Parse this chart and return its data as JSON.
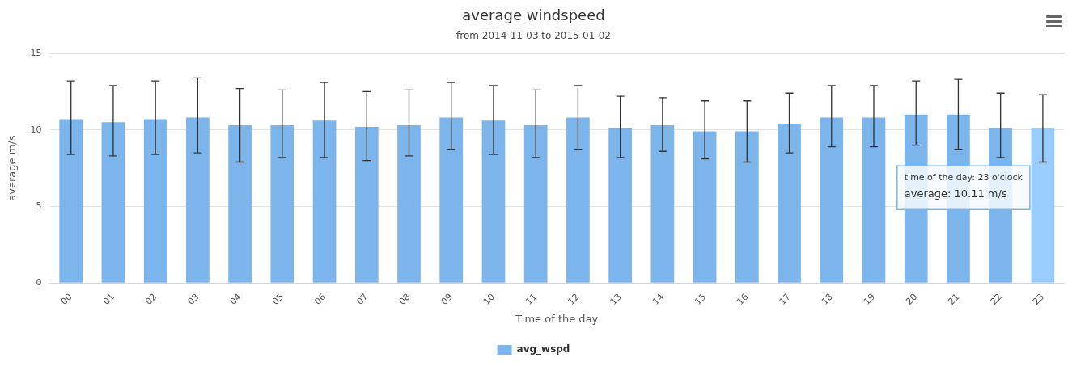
{
  "chart_data": {
    "type": "bar",
    "title": "average windspeed",
    "subtitle": "from 2014-11-03 to 2015-01-02",
    "xlabel": "Time of the day",
    "ylabel": "average m/s",
    "categories": [
      "00",
      "01",
      "02",
      "03",
      "04",
      "05",
      "06",
      "07",
      "08",
      "09",
      "10",
      "11",
      "12",
      "13",
      "14",
      "15",
      "16",
      "17",
      "18",
      "19",
      "20",
      "21",
      "22",
      "23"
    ],
    "series": [
      {
        "name": "avg_wspd",
        "color": "#7cb5ec",
        "colors": [
          "#7cb5ec",
          "#7cb5ec",
          "#7cb5ec",
          "#7cb5ec",
          "#7cb5ec",
          "#7cb5ec",
          "#7cb5ec",
          "#7cb5ec",
          "#7cb5ec",
          "#7cb5ec",
          "#7cb5ec",
          "#7cb5ec",
          "#7cb5ec",
          "#7cb5ec",
          "#7cb5ec",
          "#7cb5ec",
          "#7cb5ec",
          "#7cb5ec",
          "#7cb5ec",
          "#7cb5ec",
          "#7cb5ec",
          "#7cb5ec",
          "#7cb5ec",
          "#99ccff"
        ],
        "values": [
          10.7,
          10.5,
          10.7,
          10.8,
          10.3,
          10.3,
          10.6,
          10.2,
          10.3,
          10.8,
          10.6,
          10.3,
          10.8,
          10.1,
          10.3,
          9.9,
          9.9,
          10.4,
          10.8,
          10.8,
          11.0,
          11.0,
          10.1,
          10.11
        ],
        "errors": [
          [
            8.4,
            13.2
          ],
          [
            8.3,
            12.9
          ],
          [
            8.4,
            13.2
          ],
          [
            8.5,
            13.4
          ],
          [
            7.9,
            12.7
          ],
          [
            8.2,
            12.6
          ],
          [
            8.2,
            13.1
          ],
          [
            8.0,
            12.5
          ],
          [
            8.3,
            12.6
          ],
          [
            8.7,
            13.1
          ],
          [
            8.4,
            12.9
          ],
          [
            8.2,
            12.6
          ],
          [
            8.7,
            12.9
          ],
          [
            8.2,
            12.2
          ],
          [
            8.6,
            12.1
          ],
          [
            8.1,
            11.9
          ],
          [
            7.9,
            11.9
          ],
          [
            8.5,
            12.4
          ],
          [
            8.9,
            12.9
          ],
          [
            8.9,
            12.9
          ],
          [
            9.0,
            13.2
          ],
          [
            8.7,
            13.3
          ],
          [
            8.2,
            12.4
          ],
          [
            7.9,
            12.3
          ]
        ]
      }
    ],
    "annotations": [
      "time of the day: 23 o'clock",
      "average: 10.11 m/s"
    ],
    "ylim": [
      0,
      15
    ],
    "yticks": [
      0,
      5,
      10,
      15
    ],
    "grid": "y",
    "legend": "bottom"
  }
}
